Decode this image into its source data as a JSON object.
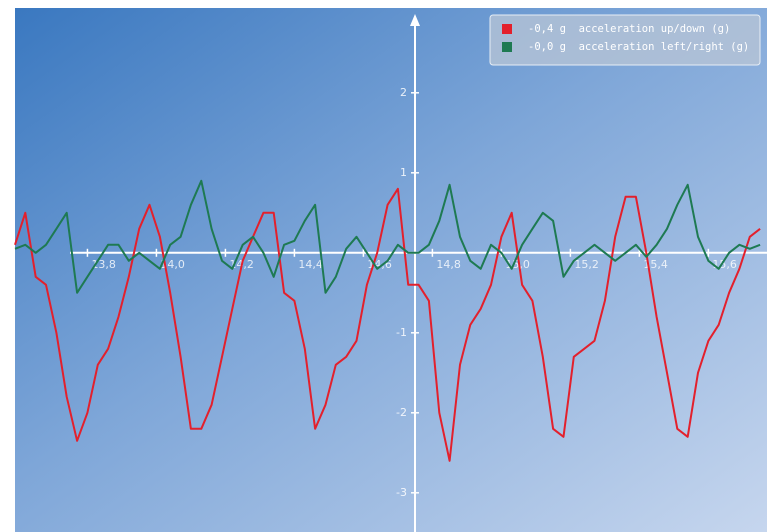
{
  "chart_data": {
    "type": "line",
    "x": [
      13.59,
      13.62,
      13.65,
      13.68,
      13.71,
      13.74,
      13.77,
      13.8,
      13.83,
      13.86,
      13.89,
      13.92,
      13.95,
      13.98,
      14.01,
      14.04,
      14.07,
      14.1,
      14.13,
      14.16,
      14.19,
      14.22,
      14.25,
      14.28,
      14.31,
      14.34,
      14.37,
      14.4,
      14.43,
      14.46,
      14.49,
      14.52,
      14.55,
      14.58,
      14.61,
      14.64,
      14.67,
      14.7,
      14.73,
      14.76,
      14.79,
      14.82,
      14.85,
      14.88,
      14.91,
      14.94,
      14.97,
      15.0,
      15.03,
      15.06,
      15.09,
      15.12,
      15.15,
      15.18,
      15.21,
      15.24,
      15.27,
      15.3,
      15.33,
      15.36,
      15.39,
      15.42,
      15.45,
      15.48,
      15.51,
      15.54,
      15.57,
      15.6,
      15.63,
      15.66,
      15.69,
      15.72,
      15.75
    ],
    "series": [
      {
        "name": "-0,4 g  acceleration up/down (g)",
        "color": "#e3202c",
        "values": [
          0.1,
          0.5,
          -0.3,
          -0.4,
          -1.0,
          -1.8,
          -2.35,
          -2.0,
          -1.4,
          -1.2,
          -0.8,
          -0.3,
          0.3,
          0.6,
          0.2,
          -0.5,
          -1.3,
          -2.2,
          -2.2,
          -1.9,
          -1.3,
          -0.7,
          -0.1,
          0.2,
          0.5,
          0.5,
          -0.5,
          -0.6,
          -1.2,
          -2.2,
          -1.9,
          -1.4,
          -1.3,
          -1.1,
          -0.4,
          0.0,
          0.6,
          0.8,
          -0.4,
          -0.4,
          -0.6,
          -2.0,
          -2.6,
          -1.4,
          -0.9,
          -0.7,
          -0.4,
          0.2,
          0.5,
          -0.4,
          -0.6,
          -1.3,
          -2.2,
          -2.3,
          -1.3,
          -1.2,
          -1.1,
          -0.6,
          0.2,
          0.7,
          0.7,
          0.0,
          -0.8,
          -1.5,
          -2.2,
          -2.3,
          -1.5,
          -1.1,
          -0.9,
          -0.5,
          -0.2,
          0.2,
          0.3
        ]
      },
      {
        "name": "-0,0 g  acceleration left/right (g)",
        "color": "#1e7a52",
        "values": [
          0.05,
          0.1,
          0.0,
          0.1,
          0.3,
          0.5,
          -0.5,
          -0.3,
          -0.1,
          0.1,
          0.1,
          -0.1,
          0.0,
          -0.1,
          -0.2,
          0.1,
          0.2,
          0.6,
          0.9,
          0.3,
          -0.1,
          -0.2,
          0.1,
          0.2,
          0.0,
          -0.3,
          0.1,
          0.15,
          0.4,
          0.6,
          -0.5,
          -0.3,
          0.05,
          0.2,
          0.0,
          -0.2,
          -0.1,
          0.1,
          0.0,
          0.0,
          0.1,
          0.4,
          0.85,
          0.2,
          -0.1,
          -0.2,
          0.1,
          0.0,
          -0.2,
          0.1,
          0.3,
          0.5,
          0.4,
          -0.3,
          -0.1,
          0.0,
          0.1,
          0.0,
          -0.1,
          0.0,
          0.1,
          -0.05,
          0.1,
          0.3,
          0.6,
          0.85,
          0.2,
          -0.1,
          -0.2,
          0.0,
          0.1,
          0.05,
          0.1
        ]
      }
    ],
    "xlim": [
      13.59,
      15.77
    ],
    "ylim": [
      -3.49,
      3.06
    ],
    "xticks": [
      {
        "value": 13.8,
        "label": "13,8"
      },
      {
        "value": 14.0,
        "label": "14,0"
      },
      {
        "value": 14.2,
        "label": "14,2"
      },
      {
        "value": 14.4,
        "label": "14,4"
      },
      {
        "value": 14.6,
        "label": "14,6"
      },
      {
        "value": 14.8,
        "label": "14,8"
      },
      {
        "value": 15.0,
        "label": "15,0"
      },
      {
        "value": 15.2,
        "label": "15,2"
      },
      {
        "value": 15.4,
        "label": "15,4"
      },
      {
        "value": 15.6,
        "label": "15,6"
      }
    ],
    "yticks": [
      -3,
      -2,
      -1,
      1,
      2
    ],
    "legend": "top-right"
  }
}
